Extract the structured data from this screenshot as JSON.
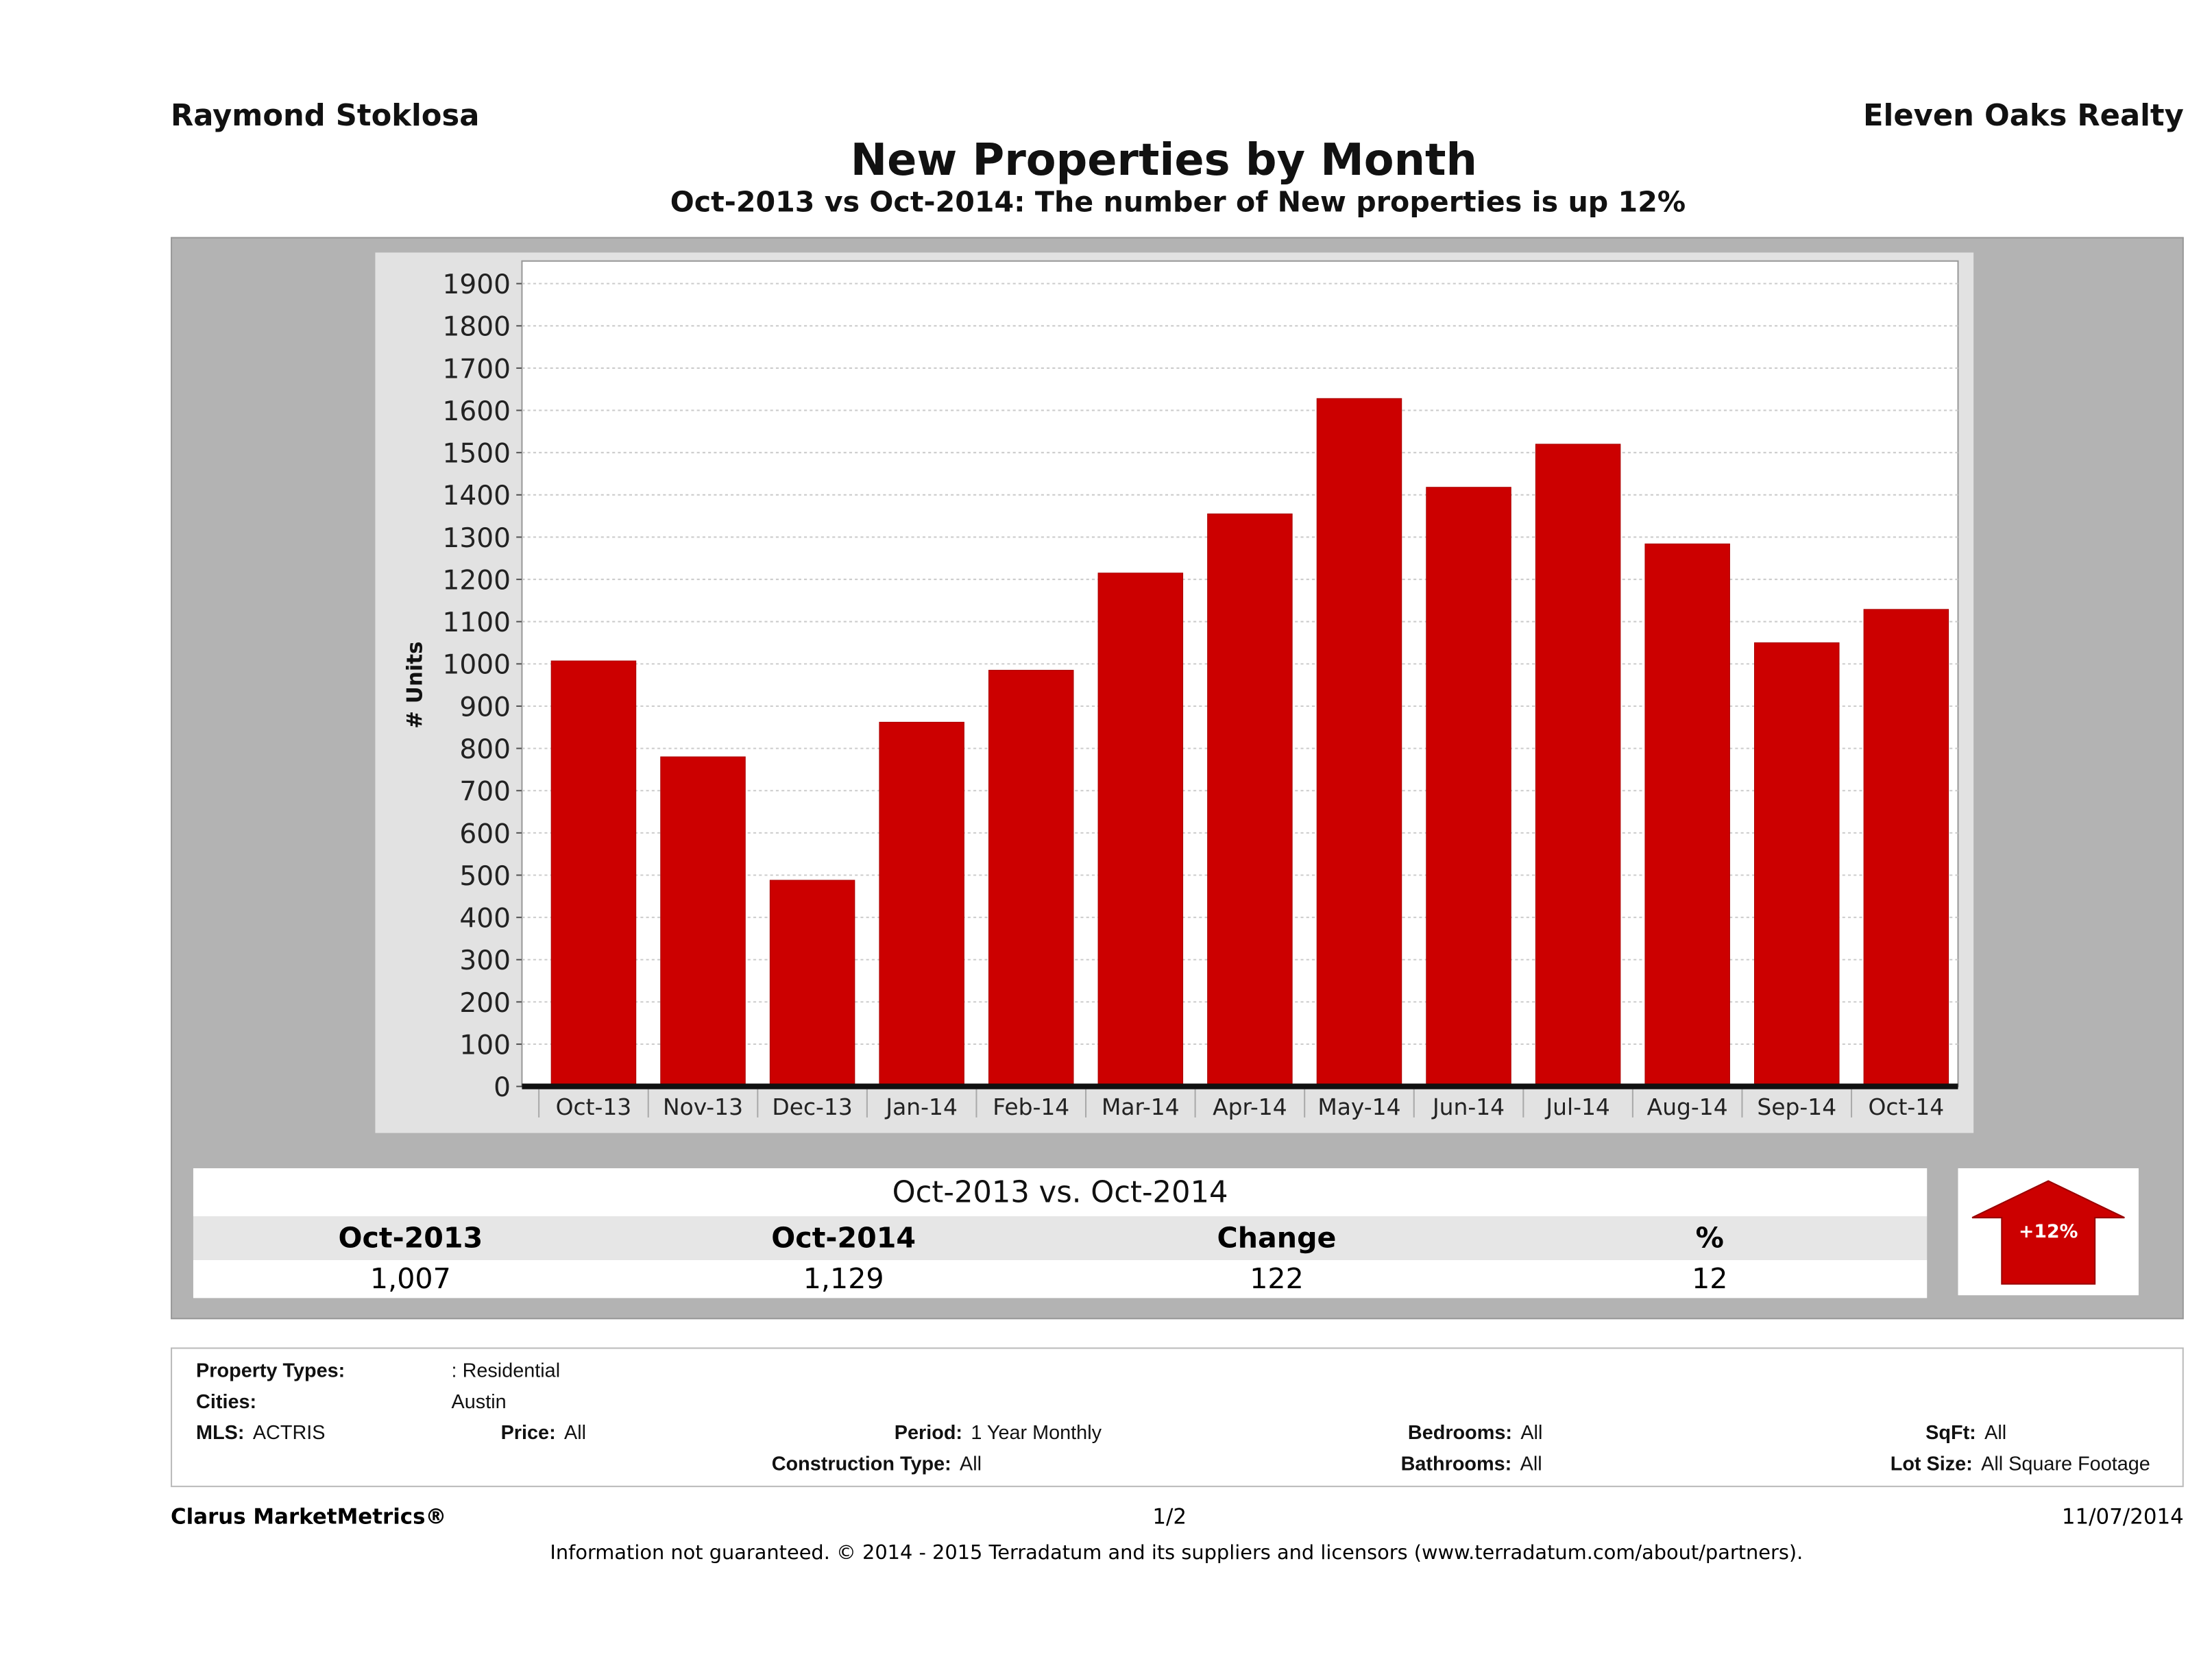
{
  "header": {
    "agent": "Raymond Stoklosa",
    "company": "Eleven Oaks Realty",
    "title": "New Properties by Month",
    "subtitle": "Oct-2013 vs Oct-2014: The number of New   properties is up 12%"
  },
  "chart_data": {
    "type": "bar",
    "title": "New Properties by Month",
    "ylabel": "# Units",
    "xlabel": "",
    "ylim": [
      0,
      1900
    ],
    "yticks": [
      0,
      100,
      200,
      300,
      400,
      500,
      600,
      700,
      800,
      900,
      1000,
      1100,
      1200,
      1300,
      1400,
      1500,
      1600,
      1700,
      1800,
      1900
    ],
    "grid": true,
    "categories": [
      "Oct-13",
      "Nov-13",
      "Dec-13",
      "Jan-14",
      "Feb-14",
      "Mar-14",
      "Apr-14",
      "May-14",
      "Jun-14",
      "Jul-14",
      "Aug-14",
      "Sep-14",
      "Oct-14"
    ],
    "values": [
      1007,
      780,
      488,
      862,
      985,
      1215,
      1355,
      1628,
      1418,
      1520,
      1284,
      1050,
      1129
    ],
    "bar_color": "#cc0000"
  },
  "summary": {
    "heading": "Oct-2013 vs. Oct-2014",
    "columns": [
      "Oct-2013",
      "Oct-2014",
      "Change",
      "%"
    ],
    "values": [
      "1,007",
      "1,129",
      "122",
      "12"
    ],
    "badge": "+12%",
    "badge_color": "#cc0000",
    "direction": "up"
  },
  "criteria": {
    "property_types_label": "Property Types:",
    "property_types": ": Residential",
    "cities_label": "Cities:",
    "cities": "Austin",
    "mls_label": "MLS:",
    "mls": "ACTRIS",
    "price_label": "Price:",
    "price": "All",
    "period_label": "Period:",
    "period": "1 Year Monthly",
    "bedrooms_label": "Bedrooms:",
    "bedrooms": "All",
    "sqft_label": "SqFt:",
    "sqft": "All",
    "construction_label": "Construction Type:",
    "construction": "All",
    "bathrooms_label": "Bathrooms:",
    "bathrooms": "All",
    "lotsize_label": "Lot Size:",
    "lotsize": "All Square Footage"
  },
  "footer": {
    "brand": "Clarus MarketMetrics®",
    "page": "1/2",
    "date": "11/07/2014",
    "disclaimer": "Information not guaranteed. © 2014 - 2015 Terradatum and its suppliers and licensors (www.terradatum.com/about/partners)."
  }
}
